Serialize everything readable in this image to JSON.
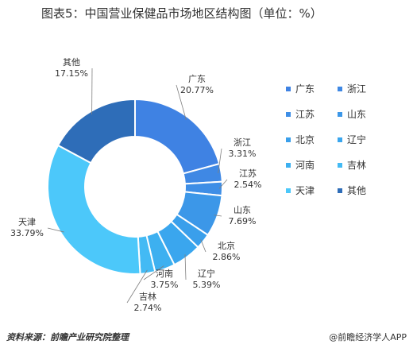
{
  "title": "图表5：中国营业保健品市场地区结构图（单位：%）",
  "source_label": "资料来源：前瞻产业研究院整理",
  "brand": "@前瞻经济学人APP",
  "chart_data": {
    "type": "pie",
    "variant": "donut",
    "legend_position": "right",
    "slices": [
      {
        "name": "广东",
        "value": 20.77,
        "label": "20.77%",
        "color": "#3f82e3"
      },
      {
        "name": "浙江",
        "value": 3.31,
        "label": "3.31%",
        "color": "#3f88e4"
      },
      {
        "name": "江苏",
        "value": 2.54,
        "label": "2.54%",
        "color": "#3e8ee6"
      },
      {
        "name": "山东",
        "value": 7.69,
        "label": "7.69%",
        "color": "#3c97e8"
      },
      {
        "name": "北京",
        "value": 2.86,
        "label": "2.86%",
        "color": "#3a9feb"
      },
      {
        "name": "辽宁",
        "value": 5.39,
        "label": "5.39%",
        "color": "#3aa6ee"
      },
      {
        "name": "河南",
        "value": 3.75,
        "label": "3.75%",
        "color": "#3db0f0"
      },
      {
        "name": "吉林",
        "value": 2.74,
        "label": "2.74%",
        "color": "#43baf4"
      },
      {
        "name": "天津",
        "value": 33.79,
        "label": "33.79%",
        "color": "#4cc8fa"
      },
      {
        "name": "其他",
        "value": 17.15,
        "label": "17.15%",
        "color": "#2e6db8"
      }
    ]
  }
}
